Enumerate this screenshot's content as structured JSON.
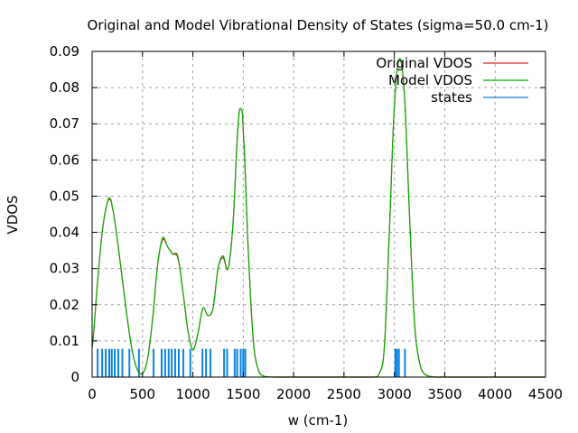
{
  "chart_data": {
    "type": "line",
    "title": "Original and Model Vibrational Density of States (sigma=50.0 cm-1)",
    "xlabel": "w (cm-1)",
    "ylabel": "VDOS",
    "xlim": [
      0,
      4500
    ],
    "ylim": [
      0,
      0.09
    ],
    "xticks": [
      0,
      500,
      1000,
      1500,
      2000,
      2500,
      3000,
      3500,
      4000,
      4500
    ],
    "yticks": [
      0,
      0.01,
      0.02,
      0.03,
      0.04,
      0.05,
      0.06,
      0.07,
      0.08,
      0.09
    ],
    "xtick_labels": [
      "0",
      "500",
      "1000",
      "1500",
      "2000",
      "2500",
      "3000",
      "3500",
      "4000",
      "4500"
    ],
    "ytick_labels": [
      "0",
      "0.01",
      "0.02",
      "0.03",
      "0.04",
      "0.05",
      "0.06",
      "0.07",
      "0.08",
      "0.09"
    ],
    "grid": true,
    "legend_position": "top-right",
    "series": [
      {
        "name": "Original VDOS",
        "color": "#e41a1c",
        "style": "line",
        "x": [
          0,
          50,
          100,
          150,
          175,
          200,
          250,
          300,
          350,
          400,
          450,
          500,
          550,
          600,
          650,
          700,
          750,
          800,
          850,
          900,
          950,
          1000,
          1050,
          1100,
          1150,
          1200,
          1250,
          1300,
          1350,
          1400,
          1450,
          1480,
          1500,
          1550,
          1600,
          1650,
          1700,
          1800,
          2000,
          2500,
          2800,
          2850,
          2900,
          2950,
          3000,
          3050,
          3100,
          3150,
          3200,
          3250,
          3300,
          3400,
          4500
        ],
        "y": [
          0.008,
          0.025,
          0.04,
          0.048,
          0.049,
          0.047,
          0.038,
          0.027,
          0.016,
          0.007,
          0.002,
          0.001,
          0.005,
          0.016,
          0.031,
          0.038,
          0.036,
          0.034,
          0.033,
          0.024,
          0.013,
          0.0075,
          0.012,
          0.019,
          0.017,
          0.019,
          0.03,
          0.033,
          0.03,
          0.043,
          0.07,
          0.074,
          0.068,
          0.035,
          0.01,
          0.002,
          0.0003,
          0,
          0,
          0,
          0,
          0.001,
          0.008,
          0.04,
          0.075,
          0.088,
          0.078,
          0.045,
          0.015,
          0.004,
          0.0008,
          0,
          0
        ]
      },
      {
        "name": "Model VDOS",
        "color": "#00b000",
        "style": "line",
        "x": [
          0,
          50,
          100,
          150,
          175,
          200,
          250,
          300,
          350,
          400,
          450,
          500,
          550,
          600,
          650,
          700,
          750,
          800,
          850,
          900,
          950,
          1000,
          1050,
          1100,
          1150,
          1200,
          1250,
          1300,
          1350,
          1400,
          1450,
          1480,
          1500,
          1550,
          1600,
          1650,
          1700,
          1800,
          2000,
          2500,
          2800,
          2850,
          2900,
          2950,
          3000,
          3050,
          3100,
          3150,
          3200,
          3250,
          3300,
          3400,
          4500
        ],
        "y": [
          0.0085,
          0.025,
          0.04,
          0.048,
          0.0495,
          0.047,
          0.038,
          0.027,
          0.016,
          0.007,
          0.002,
          0.001,
          0.005,
          0.016,
          0.031,
          0.0385,
          0.036,
          0.034,
          0.0335,
          0.024,
          0.013,
          0.0075,
          0.012,
          0.019,
          0.017,
          0.019,
          0.03,
          0.0335,
          0.03,
          0.043,
          0.07,
          0.074,
          0.068,
          0.035,
          0.01,
          0.002,
          0.0003,
          0,
          0,
          0,
          0,
          0.001,
          0.008,
          0.04,
          0.075,
          0.088,
          0.078,
          0.045,
          0.015,
          0.004,
          0.0008,
          0,
          0
        ]
      },
      {
        "name": "states",
        "color": "#0a84e6",
        "style": "impulses",
        "height": 0.0078,
        "x": [
          55,
          100,
          135,
          170,
          195,
          225,
          260,
          300,
          370,
          465,
          610,
          690,
          725,
          760,
          790,
          825,
          860,
          905,
          975,
          1095,
          1130,
          1175,
          1310,
          1340,
          1415,
          1440,
          1475,
          1500,
          1520,
          3010,
          3025,
          3045,
          3105
        ]
      }
    ]
  }
}
